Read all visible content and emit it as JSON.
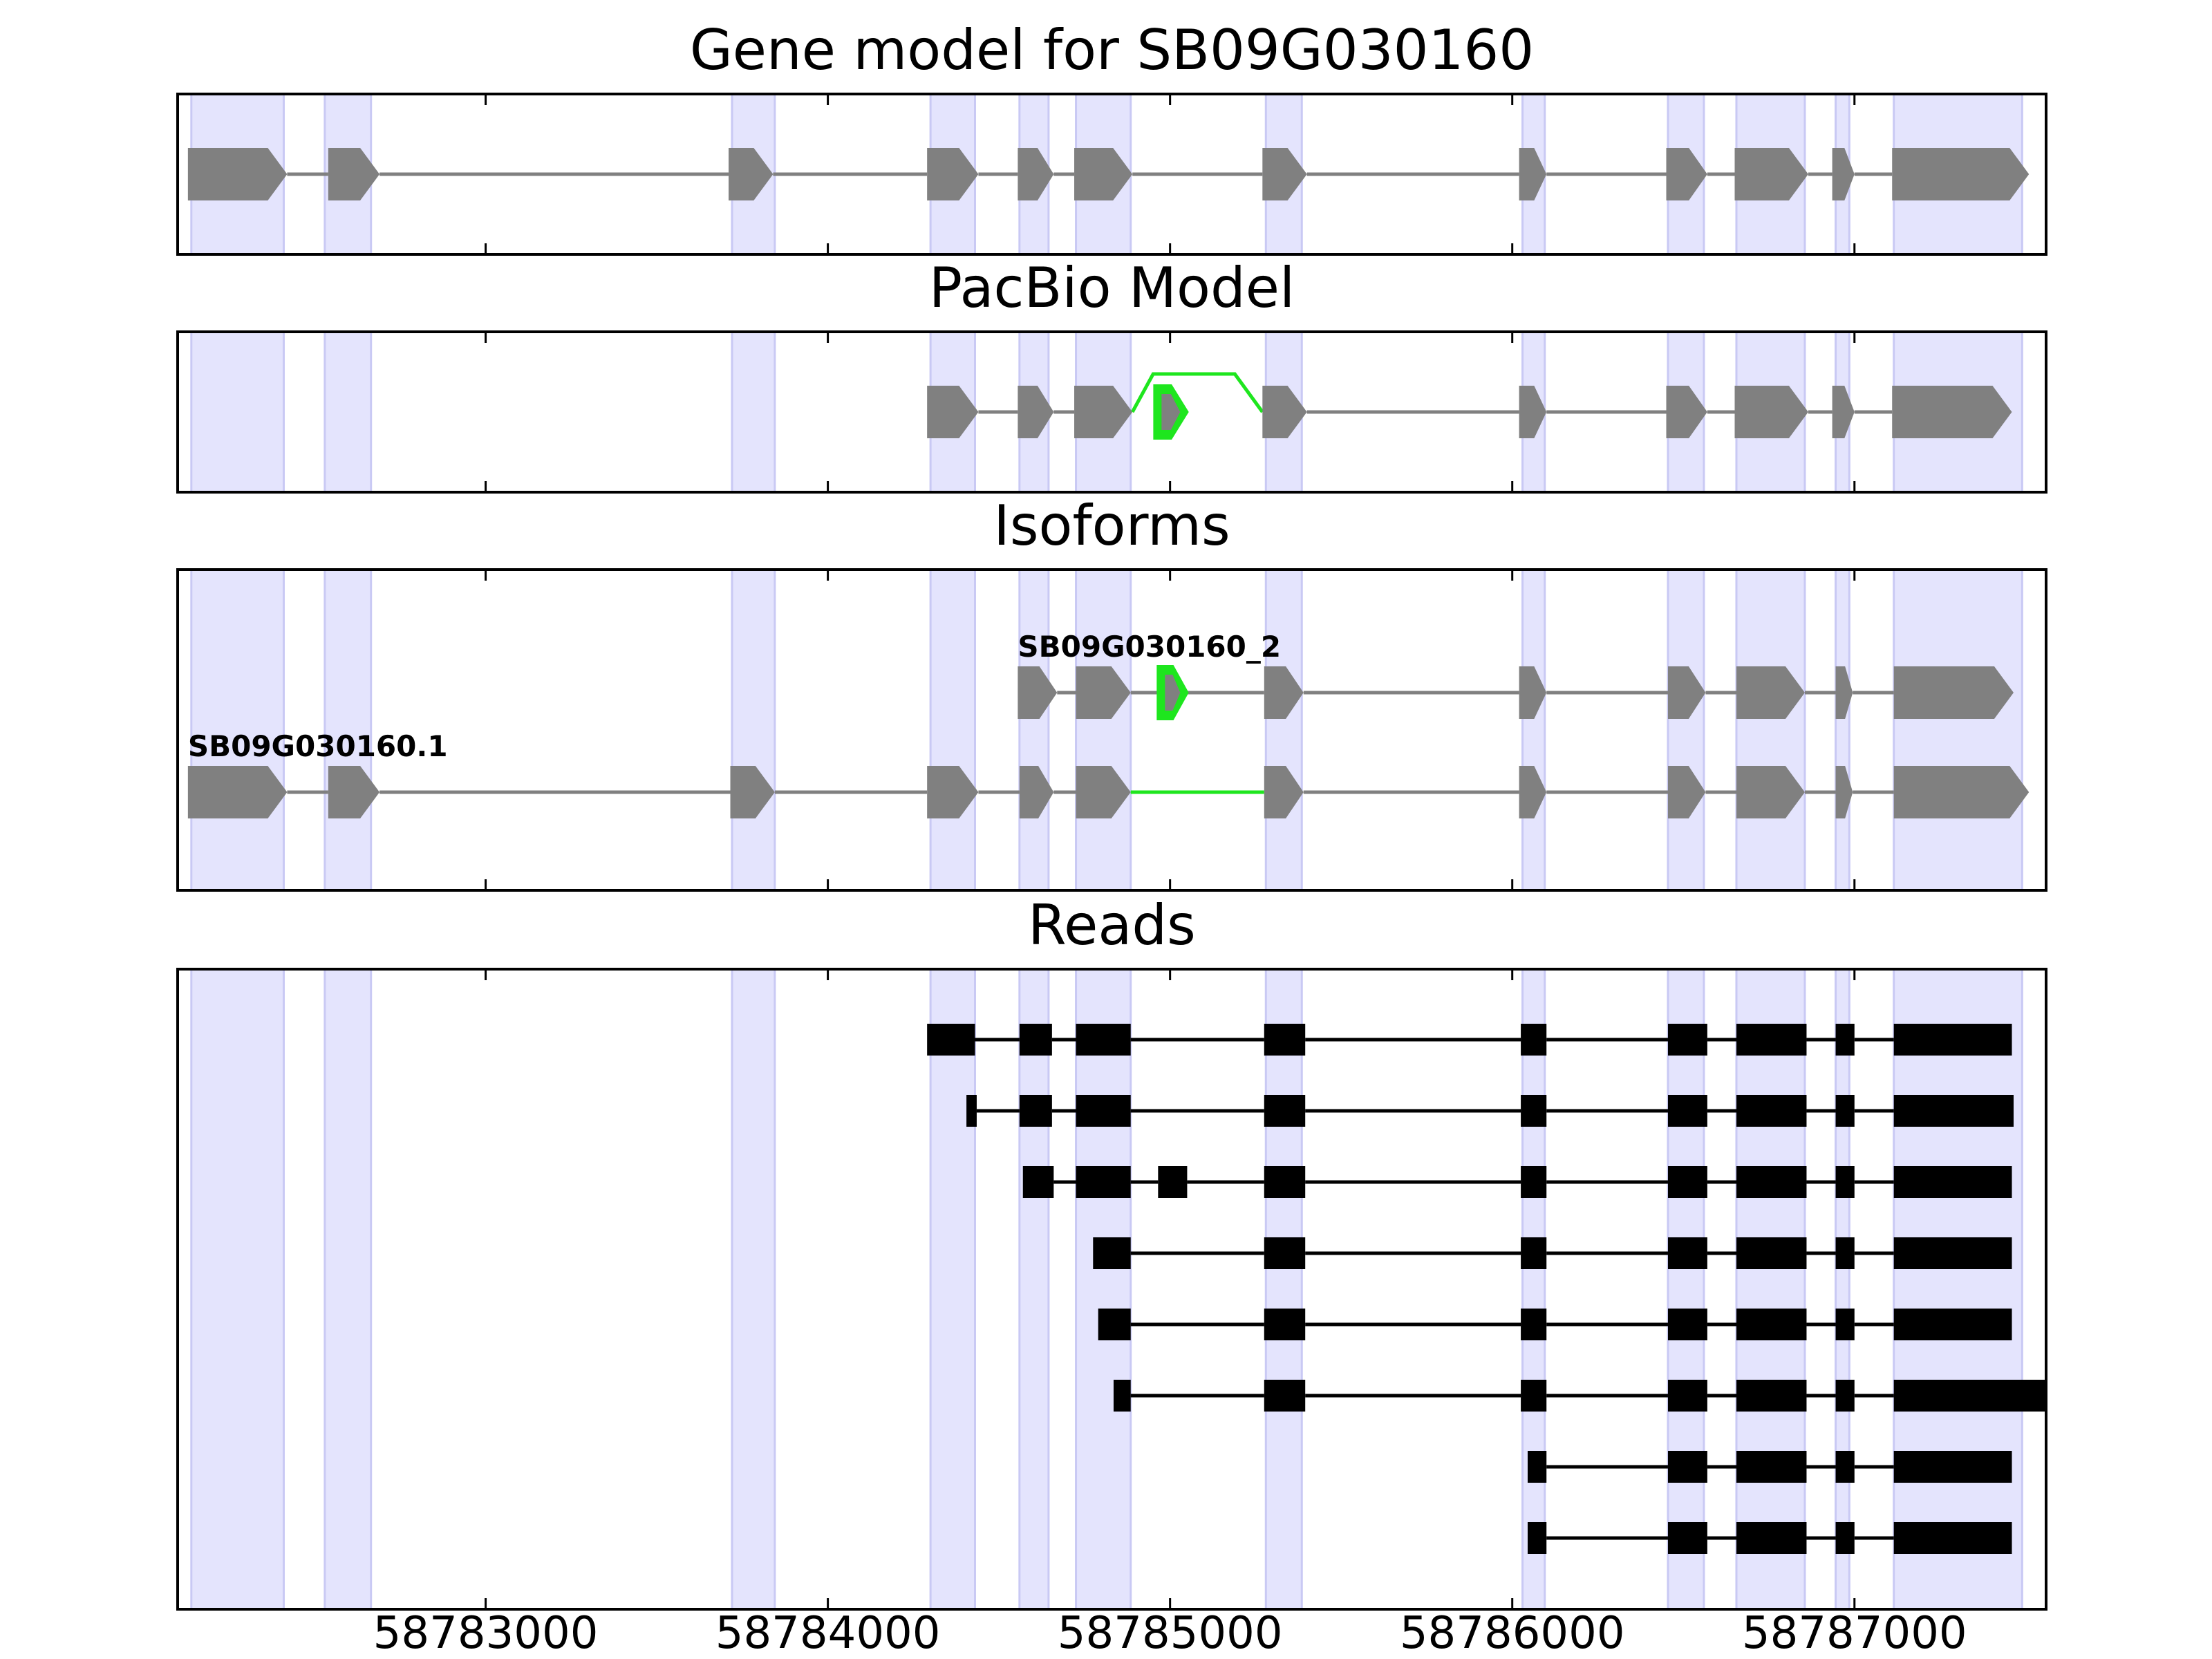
{
  "chart_data": {
    "type": "gene-structure",
    "x_ticks": [
      58783000,
      58784000,
      58785000,
      58786000,
      58787000
    ],
    "xlim": [
      58782100,
      58787560
    ],
    "colors": {
      "band": "#e4e4fd",
      "band_edge": "#c9c9f4",
      "gene": "#808080",
      "novel": "#1ee61e",
      "read": "#000000"
    },
    "shaded_regions": [
      [
        58782140,
        58782410
      ],
      [
        58782530,
        58782665
      ],
      [
        58783720,
        58783845
      ],
      [
        58784300,
        58784430
      ],
      [
        58784560,
        58784645
      ],
      [
        58784725,
        58784885
      ],
      [
        58785280,
        58785385
      ],
      [
        58786030,
        58786095
      ],
      [
        58786455,
        58786560
      ],
      [
        58786655,
        58786855
      ],
      [
        58786945,
        58786985
      ],
      [
        58787115,
        58787490
      ]
    ],
    "panels": [
      {
        "title": "Gene model for SB09G030160",
        "tracks": [
          {
            "exons": [
              [
                58782130,
                58782420
              ],
              [
                58782540,
                58782690
              ],
              [
                58783710,
                58783840
              ],
              [
                58784290,
                58784440
              ],
              [
                58784555,
                58784660
              ],
              [
                58784720,
                58784890
              ],
              [
                58785270,
                58785400
              ],
              [
                58786020,
                58786100
              ],
              [
                58786450,
                58786570
              ],
              [
                58786650,
                58786865
              ],
              [
                58786935,
                58787000
              ],
              [
                58787110,
                58787510
              ]
            ],
            "color": "gene",
            "arrow": true
          }
        ]
      },
      {
        "title": "PacBio Model",
        "tracks": [
          {
            "exons": [
              [
                58784290,
                58784440
              ],
              [
                58784555,
                58784660
              ],
              [
                58784720,
                58784890
              ],
              [
                58785270,
                58785400
              ],
              [
                58786020,
                58786100
              ],
              [
                58786450,
                58786570
              ],
              [
                58786650,
                58786865
              ],
              [
                58786935,
                58787000
              ],
              [
                58787110,
                58787460
              ]
            ],
            "color": "gene",
            "arrow": true,
            "novel_exon": [
              58784955,
              58785050
            ],
            "novel_arc": [
              58784890,
              58785270
            ]
          }
        ]
      },
      {
        "title": "Isoforms",
        "tracks": [
          {
            "label": "SB09G030160_2",
            "exons": [
              [
                58784555,
                58784670
              ],
              [
                58784725,
                58784885
              ],
              [
                58785275,
                58785390
              ],
              [
                58786020,
                58786100
              ],
              [
                58786455,
                58786565
              ],
              [
                58786655,
                58786855
              ],
              [
                58786945,
                58786995
              ],
              [
                58787115,
                58787465
              ]
            ],
            "color": "gene",
            "arrow": true,
            "novel_exon": [
              58784965,
              58785050
            ]
          },
          {
            "label": "SB09G030160.1",
            "exons": [
              [
                58782130,
                58782420
              ],
              [
                58782540,
                58782690
              ],
              [
                58783715,
                58783845
              ],
              [
                58784290,
                58784440
              ],
              [
                58784560,
                58784660
              ],
              [
                58784725,
                58784885
              ],
              [
                58785275,
                58785390
              ],
              [
                58786020,
                58786100
              ],
              [
                58786455,
                58786565
              ],
              [
                58786655,
                58786855
              ],
              [
                58786945,
                58786995
              ],
              [
                58787115,
                58787510
              ]
            ],
            "color": "gene",
            "arrow": true,
            "novel_intron": [
              58784885,
              58785275
            ]
          }
        ]
      },
      {
        "title": "Reads",
        "tracks": [
          {
            "exons": [
              [
                58784290,
                58784430
              ],
              [
                58784560,
                58784655
              ],
              [
                58784725,
                58784885
              ],
              [
                58785275,
                58785395
              ],
              [
                58786025,
                58786100
              ],
              [
                58786455,
                58786570
              ],
              [
                58786655,
                58786860
              ],
              [
                58786945,
                58787000
              ],
              [
                58787115,
                58787460
              ]
            ],
            "color": "read"
          },
          {
            "exons": [
              [
                58784405,
                58784435
              ],
              [
                58784560,
                58784655
              ],
              [
                58784725,
                58784885
              ],
              [
                58785275,
                58785395
              ],
              [
                58786025,
                58786100
              ],
              [
                58786455,
                58786570
              ],
              [
                58786655,
                58786860
              ],
              [
                58786945,
                58787000
              ],
              [
                58787115,
                58787465
              ]
            ],
            "color": "read"
          },
          {
            "exons": [
              [
                58784570,
                58784660
              ],
              [
                58784725,
                58784885
              ],
              [
                58784965,
                58785050
              ],
              [
                58785275,
                58785395
              ],
              [
                58786025,
                58786100
              ],
              [
                58786455,
                58786570
              ],
              [
                58786655,
                58786860
              ],
              [
                58786945,
                58787000
              ],
              [
                58787115,
                58787460
              ]
            ],
            "color": "read"
          },
          {
            "exons": [
              [
                58784775,
                58784885
              ],
              [
                58785275,
                58785395
              ],
              [
                58786025,
                58786100
              ],
              [
                58786455,
                58786570
              ],
              [
                58786655,
                58786860
              ],
              [
                58786945,
                58787000
              ],
              [
                58787115,
                58787460
              ]
            ],
            "color": "read"
          },
          {
            "exons": [
              [
                58784790,
                58784885
              ],
              [
                58785275,
                58785395
              ],
              [
                58786025,
                58786100
              ],
              [
                58786455,
                58786570
              ],
              [
                58786655,
                58786860
              ],
              [
                58786945,
                58787000
              ],
              [
                58787115,
                58787460
              ]
            ],
            "color": "read"
          },
          {
            "exons": [
              [
                58784835,
                58784885
              ],
              [
                58785275,
                58785395
              ],
              [
                58786025,
                58786100
              ],
              [
                58786455,
                58786570
              ],
              [
                58786655,
                58786860
              ],
              [
                58786945,
                58787000
              ],
              [
                58787115,
                58787560
              ]
            ],
            "color": "read"
          },
          {
            "exons": [
              [
                58786045,
                58786100
              ],
              [
                58786455,
                58786570
              ],
              [
                58786655,
                58786860
              ],
              [
                58786945,
                58787000
              ],
              [
                58787115,
                58787460
              ]
            ],
            "color": "read"
          },
          {
            "exons": [
              [
                58786045,
                58786100
              ],
              [
                58786455,
                58786570
              ],
              [
                58786655,
                58786860
              ],
              [
                58786945,
                58787000
              ],
              [
                58787115,
                58787460
              ]
            ],
            "color": "read"
          }
        ]
      }
    ]
  }
}
